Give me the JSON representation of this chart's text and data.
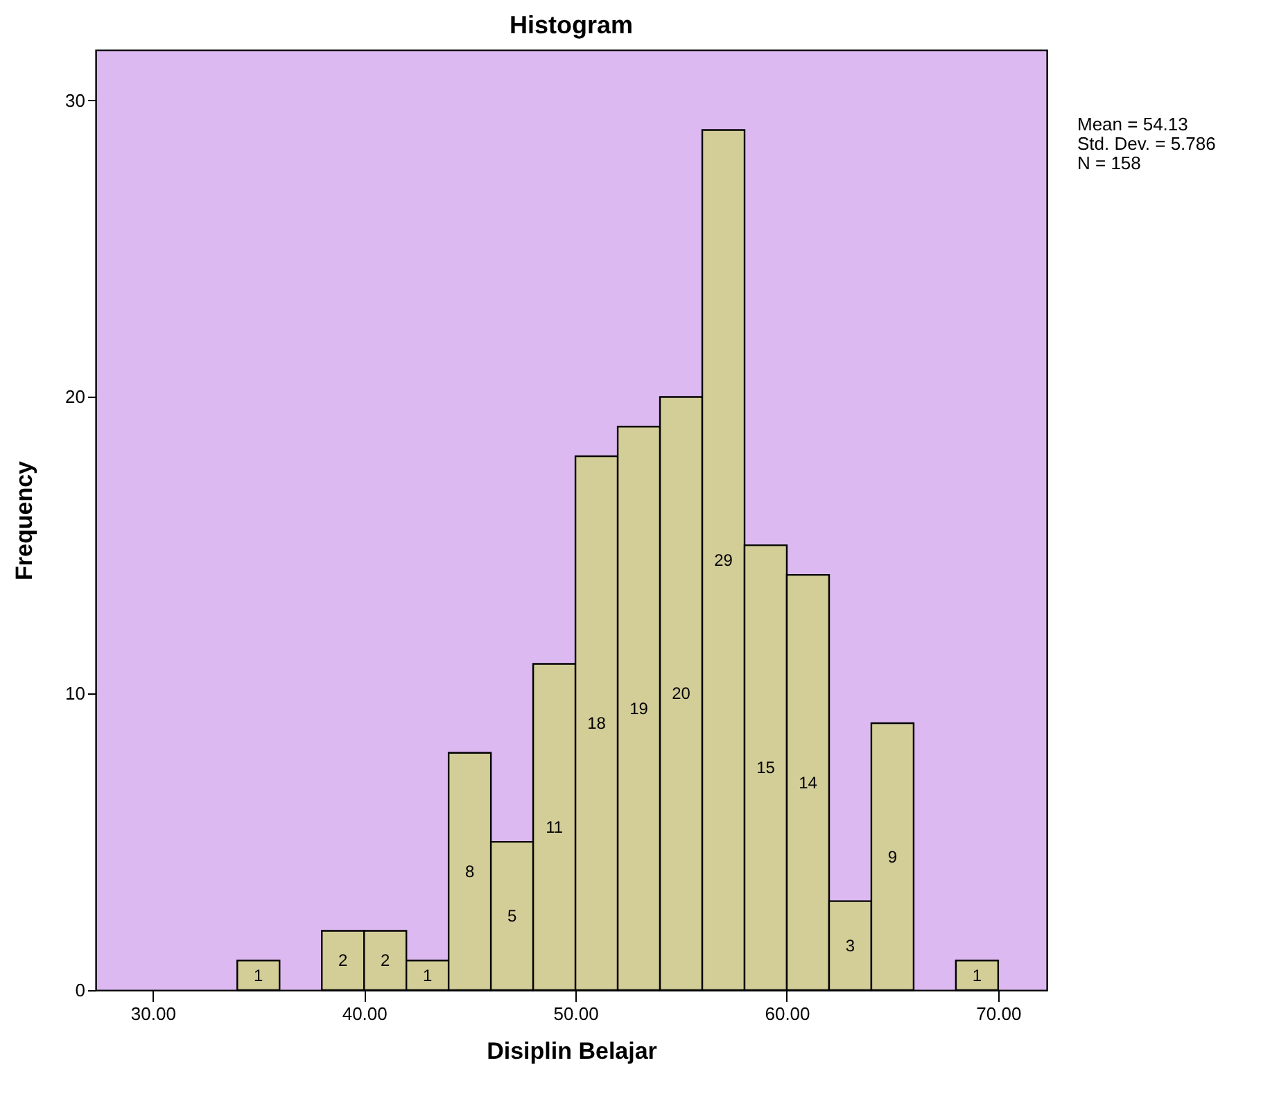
{
  "chart_data": {
    "type": "histogram",
    "title": "Histogram",
    "xlabel": "Disiplin Belajar",
    "ylabel": "Frequency",
    "bins": [
      34,
      36,
      38,
      40,
      42,
      44,
      46,
      48,
      50,
      52,
      54,
      56,
      58,
      60,
      62,
      64,
      66,
      68,
      70
    ],
    "values": [
      1,
      0,
      2,
      2,
      1,
      8,
      5,
      11,
      18,
      19,
      20,
      29,
      15,
      14,
      3,
      9,
      0,
      1
    ],
    "value_labels": [
      "1",
      null,
      "2",
      "2",
      "1",
      "8",
      "5",
      "11",
      "18",
      "19",
      "20",
      "29",
      "15",
      "14",
      "3",
      "9",
      null,
      "1"
    ],
    "color": "#d3cd98",
    "xlim": [
      27.3,
      72.3
    ],
    "xticks": [
      {
        "value": 30,
        "label": "30.00"
      },
      {
        "value": 40,
        "label": "40.00"
      },
      {
        "value": 50,
        "label": "50.00"
      },
      {
        "value": 60,
        "label": "60.00"
      },
      {
        "value": 70,
        "label": "70.00"
      }
    ],
    "ylim": [
      0,
      31.7
    ],
    "yticks": [
      0,
      10,
      20,
      30
    ],
    "annotations": [
      "Mean = 54.13",
      "Std. Dev. = 5.786",
      "N = 158"
    ]
  }
}
